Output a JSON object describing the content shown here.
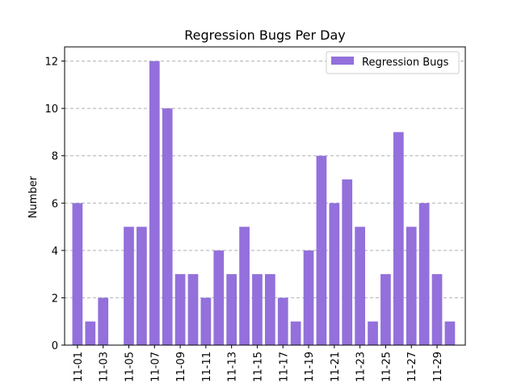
{
  "chart_data": {
    "type": "bar",
    "title": "Regression Bugs Per Day",
    "xlabel": "",
    "ylabel": "Number",
    "ylim": [
      0,
      12.6
    ],
    "yticks": [
      0,
      2,
      4,
      6,
      8,
      10,
      12
    ],
    "grid": "y-dashed",
    "legend_position": "top-right",
    "colors": {
      "bar": "#9370db",
      "grid": "#b0b0b0"
    },
    "categories": [
      "11-01",
      "11-02",
      "11-03",
      "11-04",
      "11-05",
      "11-06",
      "11-07",
      "11-08",
      "11-09",
      "11-10",
      "11-11",
      "11-12",
      "11-13",
      "11-14",
      "11-15",
      "11-16",
      "11-17",
      "11-18",
      "11-19",
      "11-20",
      "11-21",
      "11-22",
      "11-23",
      "11-24",
      "11-25",
      "11-26",
      "11-27",
      "11-28",
      "11-29",
      "11-30"
    ],
    "xtick_labels": [
      "11-01",
      "11-03",
      "11-05",
      "11-07",
      "11-09",
      "11-11",
      "11-13",
      "11-15",
      "11-17",
      "11-19",
      "11-21",
      "11-23",
      "11-25",
      "11-27",
      "11-29"
    ],
    "series": [
      {
        "name": "Regression Bugs",
        "values": [
          6,
          1,
          2,
          0,
          5,
          5,
          12,
          10,
          3,
          3,
          2,
          4,
          3,
          5,
          3,
          3,
          2,
          1,
          4,
          8,
          6,
          7,
          5,
          1,
          3,
          9,
          5,
          6,
          3,
          1
        ]
      }
    ]
  }
}
